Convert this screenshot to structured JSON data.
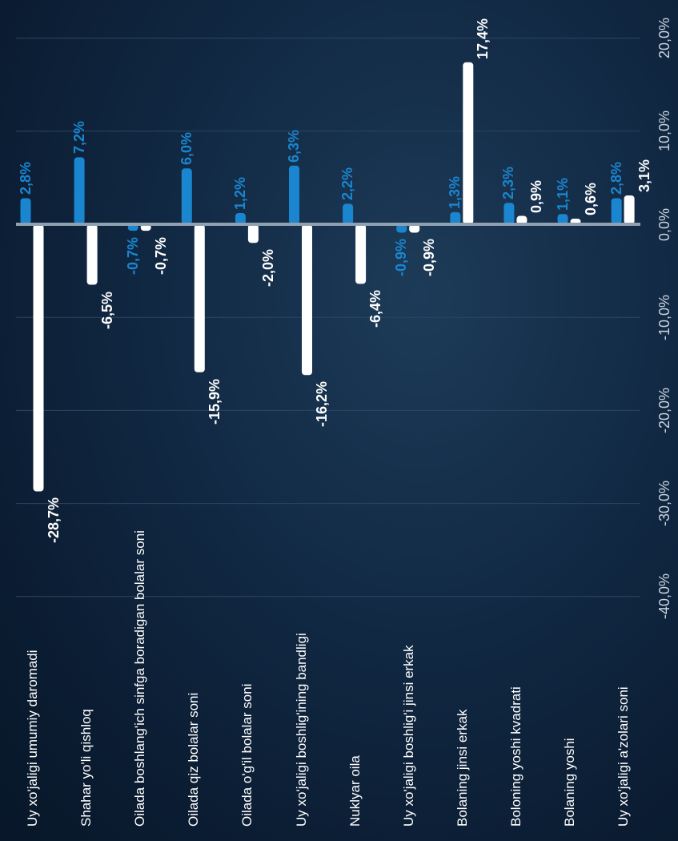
{
  "chart_data": {
    "type": "bar",
    "orientation": "horizontal",
    "categories": [
      "Uy xo'jaligi umumiy daromadi",
      "Shahar yo'li qishloq",
      "Oilada boshlang'ich sinfga boradigan bolalar soni",
      "Oilada qiz bolalar soni",
      "Oilada o'g'il bolalar soni",
      "Uy xo'jaligi boshlig'ining bandligi",
      "Nuklyar oila",
      "Uy xo'jaligi boshlig'i jinsi erkak",
      "Bolaning jinsi erkak",
      "Boloning yoshi kvadrati",
      "Bolaning yoshi",
      "Uy xo'jaligi a'zolari soni"
    ],
    "series": [
      {
        "color": "#1a86d0",
        "values": [
          2.8,
          7.2,
          -0.7,
          6.0,
          1.2,
          6.3,
          2.2,
          -0.9,
          1.3,
          2.3,
          1.1,
          2.8
        ],
        "labels": [
          "2,8%",
          "7,2%",
          "-0,7%",
          "6,0%",
          "1,2%",
          "6,3%",
          "2,2%",
          "-0,9%",
          "1,3%",
          "2,3%",
          "1,1%",
          "2,8%"
        ]
      },
      {
        "color": "#ffffff",
        "values": [
          -28.7,
          -6.5,
          -0.7,
          -15.9,
          -2.0,
          -16.2,
          -6.4,
          -0.9,
          17.4,
          0.9,
          0.6,
          3.1
        ],
        "labels": [
          "-28,7%",
          "-6,5%",
          "-0,7%",
          "-15,9%",
          "-2,0%",
          "-16,2%",
          "-6,4%",
          "-0,9%",
          "17,4%",
          "0,9%",
          "0,6%",
          "3,1%"
        ]
      }
    ],
    "x_ticks": [
      {
        "value": -40,
        "label": "-40,0%"
      },
      {
        "value": -30,
        "label": "-30,0%"
      },
      {
        "value": -20,
        "label": "-20,0%"
      },
      {
        "value": -10,
        "label": "-10,0%"
      },
      {
        "value": 0,
        "label": "0,0%"
      },
      {
        "value": 10,
        "label": "10,0%"
      },
      {
        "value": 20,
        "label": "20,0%"
      }
    ],
    "xlim": [
      -40,
      20
    ],
    "grid": true,
    "legend": "none"
  },
  "colors": {
    "background": "#0c2038",
    "series_blue": "#1a86d0",
    "series_white": "#ffffff",
    "axis": "#8fa0b0",
    "grid": "#2c4660"
  }
}
